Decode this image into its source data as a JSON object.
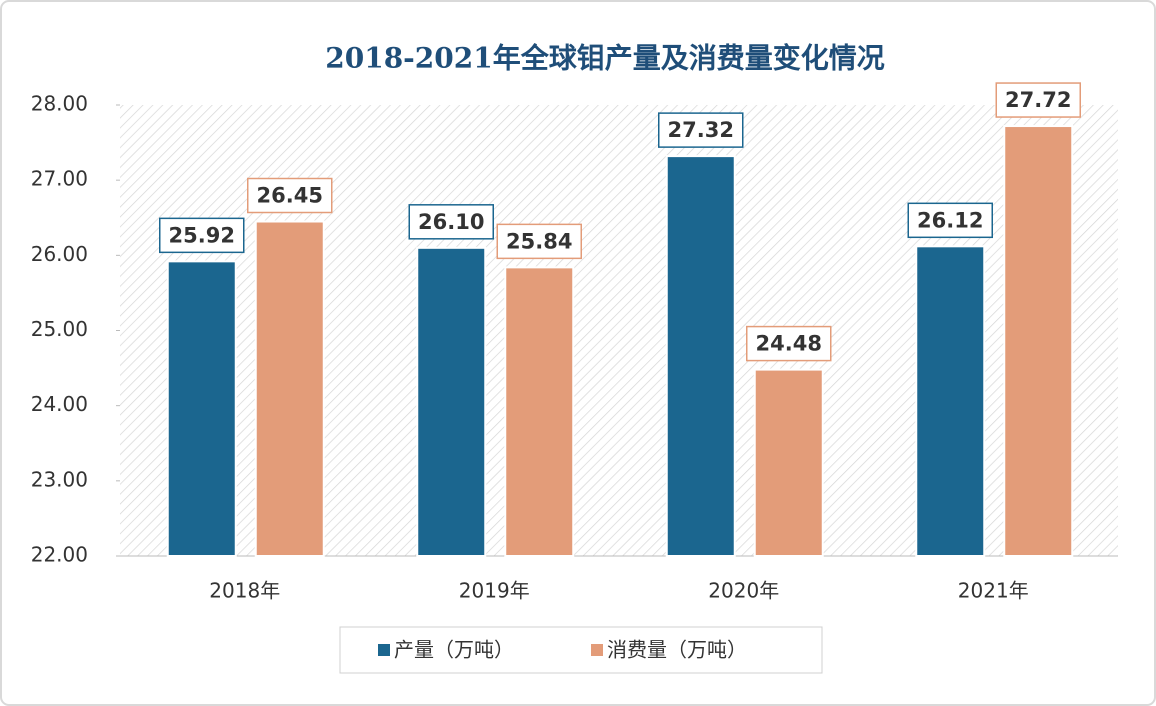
{
  "chart_data": {
    "type": "bar",
    "title": "2018-2021年全球钼产量及消费量变化情况",
    "categories": [
      "2018年",
      "2019年",
      "2020年",
      "2021年"
    ],
    "series": [
      {
        "name": "产量（万吨）",
        "color": "#1b668f",
        "values": [
          25.92,
          26.1,
          27.32,
          26.12
        ],
        "value_labels": [
          "25.92",
          "26.10",
          "27.32",
          "26.12"
        ]
      },
      {
        "name": "消费量（万吨）",
        "color": "#e39c79",
        "values": [
          26.45,
          25.84,
          24.48,
          27.72
        ],
        "value_labels": [
          "26.45",
          "25.84",
          "24.48",
          "27.72"
        ]
      }
    ],
    "ylim": [
      22,
      28
    ],
    "yticks": [
      {
        "value": 22,
        "label": "22.00"
      },
      {
        "value": 23,
        "label": "23.00"
      },
      {
        "value": 24,
        "label": "24.00"
      },
      {
        "value": 25,
        "label": "25.00"
      },
      {
        "value": 26,
        "label": "26.00"
      },
      {
        "value": 27,
        "label": "27.00"
      },
      {
        "value": 28,
        "label": "28.00"
      }
    ],
    "legend": "bottom"
  }
}
